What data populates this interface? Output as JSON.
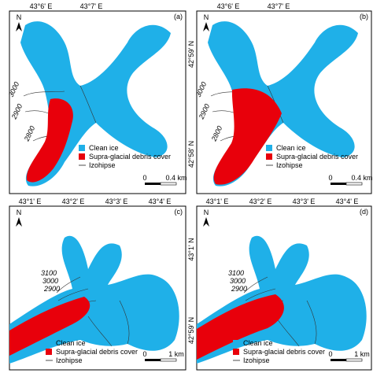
{
  "panels": [
    {
      "label": "(a)",
      "north": "N",
      "top_ticks": [
        "43°6' E",
        "43°7' E"
      ],
      "left_ticks": [],
      "contours": [
        "3000",
        "2900",
        "2800"
      ],
      "legend": [
        "Clean ice",
        "Supra-glacial debris cover",
        "Izohipse"
      ],
      "scale": [
        "0",
        "0.4 km"
      ]
    },
    {
      "label": "(b)",
      "north": "N",
      "top_ticks": [
        "43°6' E",
        "43°7' E"
      ],
      "left_ticks": [
        "42°59' N",
        "42°58' N"
      ],
      "contours": [
        "3000",
        "2900",
        "2800"
      ],
      "legend": [
        "Clean ice",
        "Supra-glacial debris cover",
        "Izohipse"
      ],
      "scale": [
        "0",
        "0.4 km"
      ]
    },
    {
      "label": "(c)",
      "north": "N",
      "top_ticks": [
        "43°1' E",
        "43°2' E",
        "43°3' E",
        "43°4' E"
      ],
      "left_ticks": [],
      "contours": [
        "3100",
        "3000",
        "2900"
      ],
      "legend": [
        "Clean ice",
        "Supra-glacial debris cover",
        "Izohipse"
      ],
      "scale": [
        "0",
        "1 km"
      ]
    },
    {
      "label": "(d)",
      "north": "N",
      "top_ticks": [
        "43°1' E",
        "43°2' E",
        "43°3' E",
        "43°4' E"
      ],
      "left_ticks": [
        "43°1' N",
        "42°59' N"
      ],
      "contours": [
        "3100",
        "3000",
        "2900"
      ],
      "legend": [
        "Clean ice",
        "Supra-glacial debris cover",
        "Izohipse"
      ],
      "scale": [
        "0",
        "1 km"
      ]
    }
  ]
}
